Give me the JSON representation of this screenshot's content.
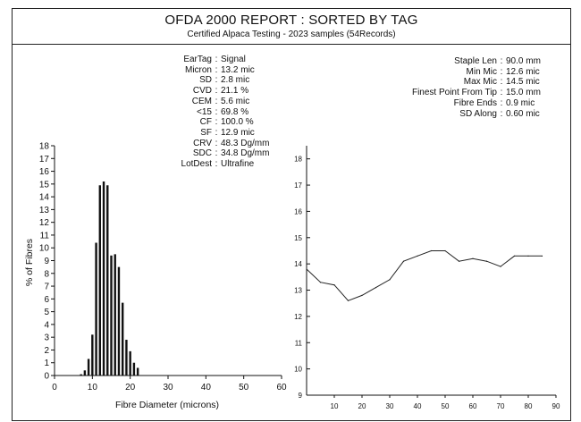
{
  "report": {
    "title": "OFDA 2000 REPORT : SORTED BY TAG",
    "subtitle": "Certified Alpaca Testing - 2023 samples (54Records)"
  },
  "stats_left": [
    {
      "label": "EarTag",
      "value": "Signal"
    },
    {
      "label": "Micron",
      "value": "13.2 mic"
    },
    {
      "label": "SD",
      "value": "2.8 mic"
    },
    {
      "label": "CVD",
      "value": "21.1 %"
    },
    {
      "label": "CEM",
      "value": "5.6 mic"
    },
    {
      "label": "<15",
      "value": "69.8 %"
    },
    {
      "label": "CF",
      "value": "100.0 %"
    },
    {
      "label": "SF",
      "value": "12.9 mic"
    },
    {
      "label": "CRV",
      "value": "48.3 Dg/mm"
    },
    {
      "label": "SDC",
      "value": "34.8 Dg/mm"
    },
    {
      "label": "LotDest",
      "value": "Ultrafine"
    }
  ],
  "stats_right": [
    {
      "label": "Staple Len",
      "value": "90.0 mm"
    },
    {
      "label": "Min Mic",
      "value": "12.6 mic"
    },
    {
      "label": "Max Mic",
      "value": "14.5 mic"
    },
    {
      "label": "Finest Point From Tip",
      "value": "15.0 mm"
    },
    {
      "label": "Fibre Ends",
      "value": "0.9 mic"
    },
    {
      "label": "SD Along",
      "value": "0.60 mic"
    }
  ],
  "chart_data": [
    {
      "type": "bar",
      "xlabel": "Fibre Diameter (microns)",
      "ylabel": "% of Fibres",
      "xlim": [
        0,
        60
      ],
      "ylim": [
        0,
        18
      ],
      "xticks": [
        0,
        10,
        20,
        30,
        40,
        50,
        60
      ],
      "yticks": [
        0,
        1,
        2,
        3,
        4,
        5,
        6,
        7,
        8,
        9,
        10,
        11,
        12,
        13,
        14,
        15,
        16,
        17,
        18
      ],
      "grid": false,
      "x": [
        7,
        8,
        9,
        10,
        11,
        12,
        13,
        14,
        15,
        16,
        17,
        18,
        19,
        20,
        21,
        22
      ],
      "values": [
        0.1,
        0.4,
        1.3,
        3.2,
        10.4,
        14.9,
        15.2,
        14.9,
        9.4,
        9.5,
        8.5,
        5.7,
        2.8,
        1.9,
        1.0,
        0.6
      ]
    },
    {
      "type": "line",
      "xlim": [
        0,
        90
      ],
      "ylim": [
        9,
        18.5
      ],
      "xticks": [
        10,
        20,
        30,
        40,
        50,
        60,
        70,
        80,
        90
      ],
      "yticks": [
        9,
        10,
        11,
        12,
        13,
        14,
        15,
        16,
        17,
        18
      ],
      "grid": false,
      "x": [
        0,
        5,
        10,
        15,
        20,
        25,
        30,
        35,
        40,
        45,
        50,
        55,
        60,
        65,
        70,
        75,
        80,
        85
      ],
      "y": [
        13.8,
        13.3,
        13.2,
        12.6,
        12.8,
        13.1,
        13.4,
        14.1,
        14.3,
        14.5,
        14.5,
        14.1,
        14.2,
        14.1,
        13.9,
        14.3,
        14.3,
        14.3
      ]
    }
  ]
}
